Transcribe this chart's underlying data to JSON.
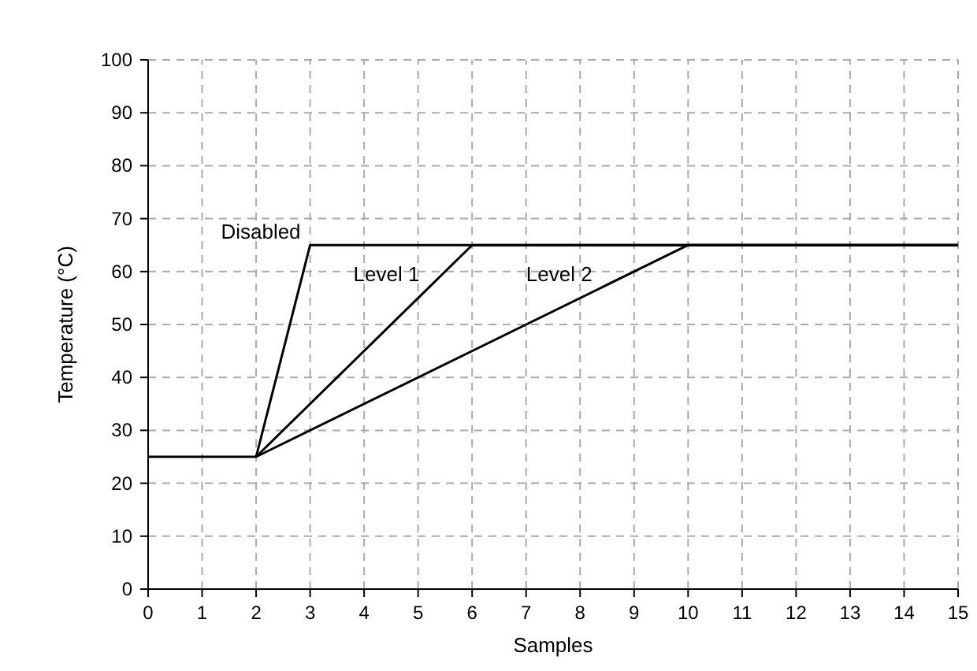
{
  "chart_data": {
    "type": "line",
    "xlabel": "Samples",
    "ylabel": "Temperature (°C)",
    "xlim": [
      0,
      15
    ],
    "xticks": [
      0,
      1,
      2,
      3,
      4,
      5,
      6,
      7,
      8,
      9,
      10,
      11,
      12,
      13,
      14,
      15
    ],
    "ylim": [
      0,
      100
    ],
    "yticks": [
      0,
      10,
      20,
      30,
      40,
      50,
      60,
      70,
      80,
      90,
      100
    ],
    "grid": true,
    "marker": "none",
    "line_style": "solid",
    "series": [
      {
        "name": "Disabled",
        "color": "#000000",
        "x": [
          0,
          2,
          3,
          15
        ],
        "values": [
          25,
          25,
          65,
          65
        ]
      },
      {
        "name": "Level 1",
        "color": "#000000",
        "x": [
          2,
          6,
          15
        ],
        "values": [
          25,
          65,
          65
        ]
      },
      {
        "name": "Level 2",
        "color": "#000000",
        "x": [
          2,
          10,
          15
        ],
        "values": [
          25,
          65,
          65
        ]
      }
    ]
  }
}
